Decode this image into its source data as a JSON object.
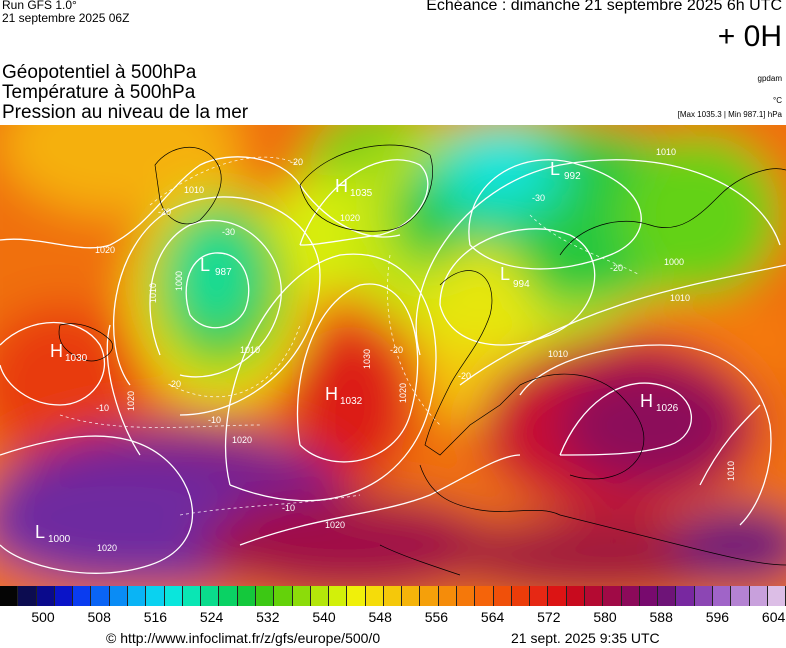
{
  "header": {
    "run": "Run GFS 1.0°",
    "run_date": "21 septembre 2025 06Z",
    "echeance": "Echéance : dimanche 21 septembre 2025 6h UTC",
    "offset": "+ 0H"
  },
  "params": {
    "line1": "Géopotentiel à 500hPa",
    "line2": "Température à 500hPa",
    "line3": "Pression au niveau de la mer"
  },
  "units": {
    "geopotential": "gpdam",
    "temperature": "°C",
    "minmax": "[Max 1035.3 | Min 987.1] hPa"
  },
  "map": {
    "centers": [
      {
        "type": "H",
        "value": "1030"
      },
      {
        "type": "L",
        "value": "987"
      },
      {
        "type": "H",
        "value": "1035"
      },
      {
        "type": "L",
        "value": "992"
      },
      {
        "type": "L",
        "value": "994"
      },
      {
        "type": "H",
        "value": "1032"
      },
      {
        "type": "H",
        "value": "1026"
      },
      {
        "type": "L",
        "value": "1000"
      }
    ],
    "isobar_labels": [
      "1010",
      "1020",
      "1000",
      "1010",
      "1010",
      "1020",
      "1030",
      "1020",
      "1020",
      "1010",
      "1020",
      "1010",
      "1000",
      "1010",
      "1010",
      "1020",
      "1020"
    ],
    "temp_labels": [
      "-20",
      "-20",
      "-30",
      "-20",
      "-30",
      "-20",
      "-20",
      "-10",
      "-10",
      "-10",
      "-20"
    ]
  },
  "legend": {
    "colors": [
      "#050505",
      "#0c0c50",
      "#0a0a8c",
      "#0a14c8",
      "#0a3cf0",
      "#0a64f5",
      "#0a8cf5",
      "#0ab4f5",
      "#0ad2f0",
      "#0ae6dc",
      "#0ae6b4",
      "#0adc8c",
      "#0ad264",
      "#14c83c",
      "#3cc814",
      "#64d20a",
      "#8cdc0a",
      "#b4e60a",
      "#d2f00a",
      "#f0f00a",
      "#f5dc0a",
      "#f5c80a",
      "#f5b40a",
      "#f5a00a",
      "#f58c0a",
      "#f5780a",
      "#f5640a",
      "#f0500a",
      "#eb3c0a",
      "#e62814",
      "#dc1414",
      "#c80a1e",
      "#b40a32",
      "#a00a46",
      "#8c0a5a",
      "#780a6e",
      "#6e1478",
      "#7828a0",
      "#8c46b4",
      "#a064c8",
      "#b482d2",
      "#c8a0dc",
      "#dcbee6"
    ],
    "labels": [
      "500",
      "508",
      "516",
      "524",
      "532",
      "540",
      "548",
      "556",
      "564",
      "572",
      "580",
      "588",
      "596",
      "604"
    ]
  },
  "footer": {
    "url": "© http://www.infoclimat.fr/z/gfs/europe/500/0",
    "date": "21 sept. 2025  9:35 UTC"
  }
}
